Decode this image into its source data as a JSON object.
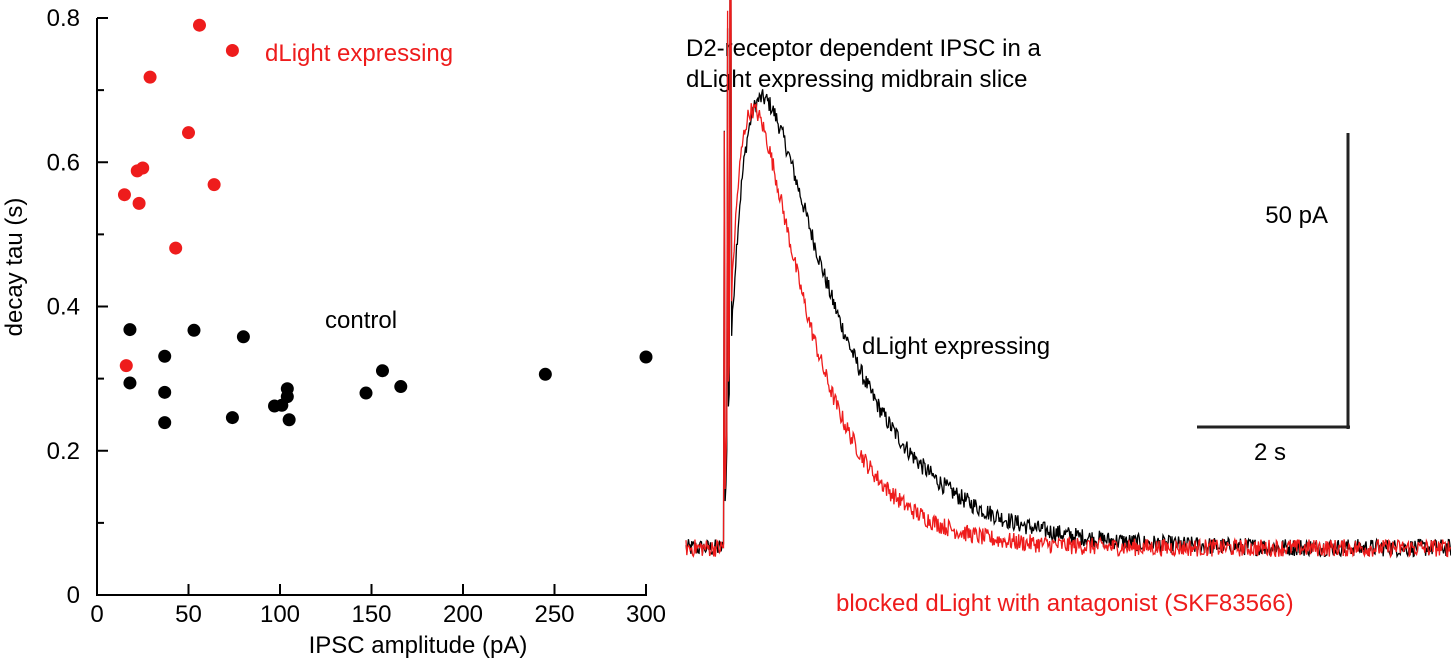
{
  "colors": {
    "black": "#000000",
    "red": "#ee1c1c",
    "scalebar": "#222222"
  },
  "chart_data": [
    {
      "type": "scatter",
      "xlabel": "IPSC amplitude (pA)",
      "ylabel": "decay tau (s)",
      "xlim": [
        0,
        300
      ],
      "ylim": [
        0,
        0.8
      ],
      "x_ticks": [
        0,
        50,
        100,
        150,
        200,
        250,
        300
      ],
      "x_tick_labels": [
        "0",
        "50",
        "100",
        "150",
        "200",
        "250",
        "300"
      ],
      "y_major_ticks": [
        0,
        0.2,
        0.4,
        0.6,
        0.8
      ],
      "y_tick_labels": [
        "0",
        "0.2",
        "0.4",
        "0.6",
        "0.8"
      ],
      "y_minor_ticks": [
        0.1,
        0.3,
        0.5,
        0.7
      ],
      "grid": false,
      "series": [
        {
          "name": "dLight expressing",
          "color": "#ee1c1c",
          "points": [
            [
              56,
              0.79
            ],
            [
              74,
              0.755
            ],
            [
              29,
              0.718
            ],
            [
              50,
              0.641
            ],
            [
              25,
              0.592
            ],
            [
              22,
              0.588
            ],
            [
              64,
              0.569
            ],
            [
              15,
              0.555
            ],
            [
              23,
              0.543
            ],
            [
              43,
              0.481
            ],
            [
              16,
              0.318
            ]
          ]
        },
        {
          "name": "control",
          "color": "#000000",
          "points": [
            [
              18,
              0.368
            ],
            [
              53,
              0.367
            ],
            [
              80,
              0.358
            ],
            [
              37,
              0.331
            ],
            [
              300,
              0.33
            ],
            [
              156,
              0.311
            ],
            [
              245,
              0.306
            ],
            [
              18,
              0.294
            ],
            [
              166,
              0.289
            ],
            [
              104,
              0.286
            ],
            [
              37,
              0.281
            ],
            [
              147,
              0.28
            ],
            [
              104,
              0.275
            ],
            [
              101,
              0.263
            ],
            [
              97,
              0.262
            ],
            [
              74,
              0.246
            ],
            [
              105,
              0.243
            ],
            [
              37,
              0.239
            ]
          ]
        }
      ]
    },
    {
      "type": "line",
      "title": "D2-receptor dependent IPSC in a dLight expressing midbrain slice",
      "title_lines": [
        "D2-receptor dependent IPSC in a",
        "dLight expressing midbrain slice"
      ],
      "scale_bar": {
        "y_label": "50 pA",
        "x_label": "2 s",
        "y_value": 50,
        "x_value": 2
      },
      "time_range": [
        0,
        16.2
      ],
      "series": [
        {
          "name": "dLight expressing",
          "color": "#000000",
          "peak_pA": 76,
          "peak_time_s": 1.25,
          "decay_tau_s": 1.05,
          "baseline_pA": 0,
          "noise_pA": 1.5
        },
        {
          "name": "blocked dLight with antagonist (SKF83566)",
          "color": "#ee1c1c",
          "peak_pA": 74,
          "peak_time_s": 1.05,
          "decay_tau_s": 0.75,
          "baseline_pA": 0,
          "noise_pA": 1.5
        }
      ]
    }
  ]
}
